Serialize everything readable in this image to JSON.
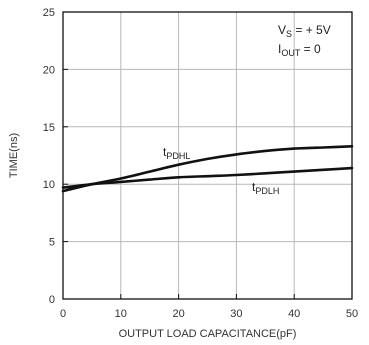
{
  "chart_data": {
    "type": "line",
    "xlabel": "OUTPUT LOAD CAPACITANCE(pF)",
    "ylabel": "TIME(ns)",
    "xlim": [
      0,
      50
    ],
    "ylim": [
      0,
      25
    ],
    "xticks": [
      "0",
      "10",
      "20",
      "30",
      "40",
      "50"
    ],
    "yticks": [
      "0",
      "5",
      "10",
      "15",
      "20",
      "25"
    ],
    "grid": true,
    "annotation": {
      "line1_main": "V",
      "line1_sub": "S",
      "line1_rest": " = + 5V",
      "line2_main": "I",
      "line2_sub": "OUT",
      "line2_rest": " = 0"
    },
    "series": [
      {
        "name_main": "t",
        "name_sub": "PDHL",
        "x": [
          0,
          5,
          10,
          15,
          20,
          25,
          30,
          35,
          40,
          45,
          50
        ],
        "values": [
          9.4,
          10.0,
          10.5,
          11.1,
          11.7,
          12.2,
          12.6,
          12.9,
          13.1,
          13.2,
          13.3
        ]
      },
      {
        "name_main": "t",
        "name_sub": "PDLH",
        "x": [
          0,
          5,
          10,
          15,
          20,
          25,
          30,
          35,
          40,
          45,
          50
        ],
        "values": [
          9.7,
          10.0,
          10.2,
          10.4,
          10.6,
          10.7,
          10.8,
          10.95,
          11.1,
          11.25,
          11.4
        ]
      }
    ]
  }
}
